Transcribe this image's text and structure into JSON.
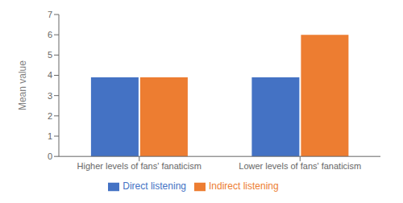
{
  "chart_data": {
    "type": "bar",
    "ylabel": "Mean value",
    "categories": [
      "Higher levels of fans' fanaticism",
      "Lower levels of fans' fanaticism"
    ],
    "series": [
      {
        "name": "Direct listening",
        "color": "#4472c4",
        "values": [
          3.9,
          3.9
        ]
      },
      {
        "name": "Indirect listening",
        "color": "#ed7d31",
        "values": [
          3.9,
          6.0
        ]
      }
    ],
    "ylim": [
      0,
      7
    ],
    "yticks": [
      0,
      1,
      2,
      3,
      4,
      5,
      6,
      7
    ],
    "grid": false,
    "legend": "bottom"
  }
}
